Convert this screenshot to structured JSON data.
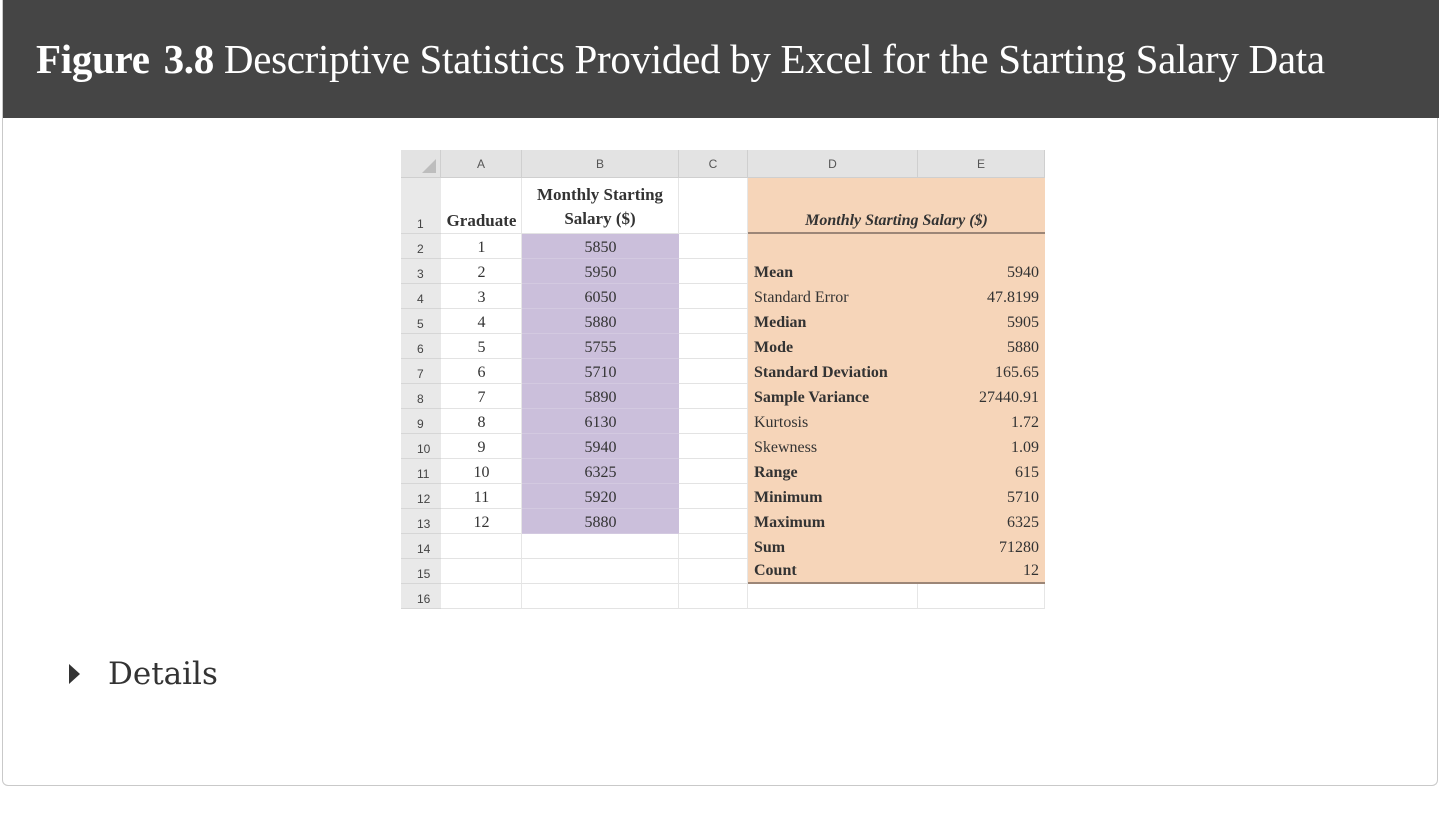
{
  "figure": {
    "label": "Figure",
    "number": "3.8",
    "caption": "Descriptive Statistics Provided by Excel for the Starting Salary Data"
  },
  "sheet": {
    "columns": [
      "A",
      "B",
      "C",
      "D",
      "E"
    ],
    "row_numbers": [
      "1",
      "2",
      "3",
      "4",
      "5",
      "6",
      "7",
      "8",
      "9",
      "10",
      "11",
      "12",
      "13",
      "14",
      "15",
      "16"
    ],
    "header_a": "Graduate",
    "header_b_line1": "Monthly Starting",
    "header_b_line2": "Salary ($)",
    "header_d": "Monthly Starting Salary ($)",
    "graduates": [
      "1",
      "2",
      "3",
      "4",
      "5",
      "6",
      "7",
      "8",
      "9",
      "10",
      "11",
      "12"
    ],
    "salaries": [
      "5850",
      "5950",
      "6050",
      "5880",
      "5755",
      "5710",
      "5890",
      "6130",
      "5940",
      "6325",
      "5920",
      "5880"
    ],
    "stats": [
      {
        "label": "Mean",
        "value": "5940",
        "bold": true
      },
      {
        "label": "Standard Error",
        "value": "47.8199",
        "bold": false
      },
      {
        "label": "Median",
        "value": "5905",
        "bold": true
      },
      {
        "label": "Mode",
        "value": "5880",
        "bold": true
      },
      {
        "label": "Standard Deviation",
        "value": "165.65",
        "bold": true
      },
      {
        "label": "Sample Variance",
        "value": "27440.91",
        "bold": true
      },
      {
        "label": "Kurtosis",
        "value": "1.72",
        "bold": false
      },
      {
        "label": "Skewness",
        "value": "1.09",
        "bold": false
      },
      {
        "label": "Range",
        "value": "615",
        "bold": true
      },
      {
        "label": "Minimum",
        "value": "5710",
        "bold": true
      },
      {
        "label": "Maximum",
        "value": "6325",
        "bold": true
      },
      {
        "label": "Sum",
        "value": "71280",
        "bold": true
      },
      {
        "label": "Count",
        "value": "12",
        "bold": true
      }
    ],
    "colors": {
      "salary_fill": "#cbbfdb",
      "stats_fill": "#f6d5b9",
      "header_bar": "#454545"
    }
  },
  "details": {
    "label": "Details"
  }
}
